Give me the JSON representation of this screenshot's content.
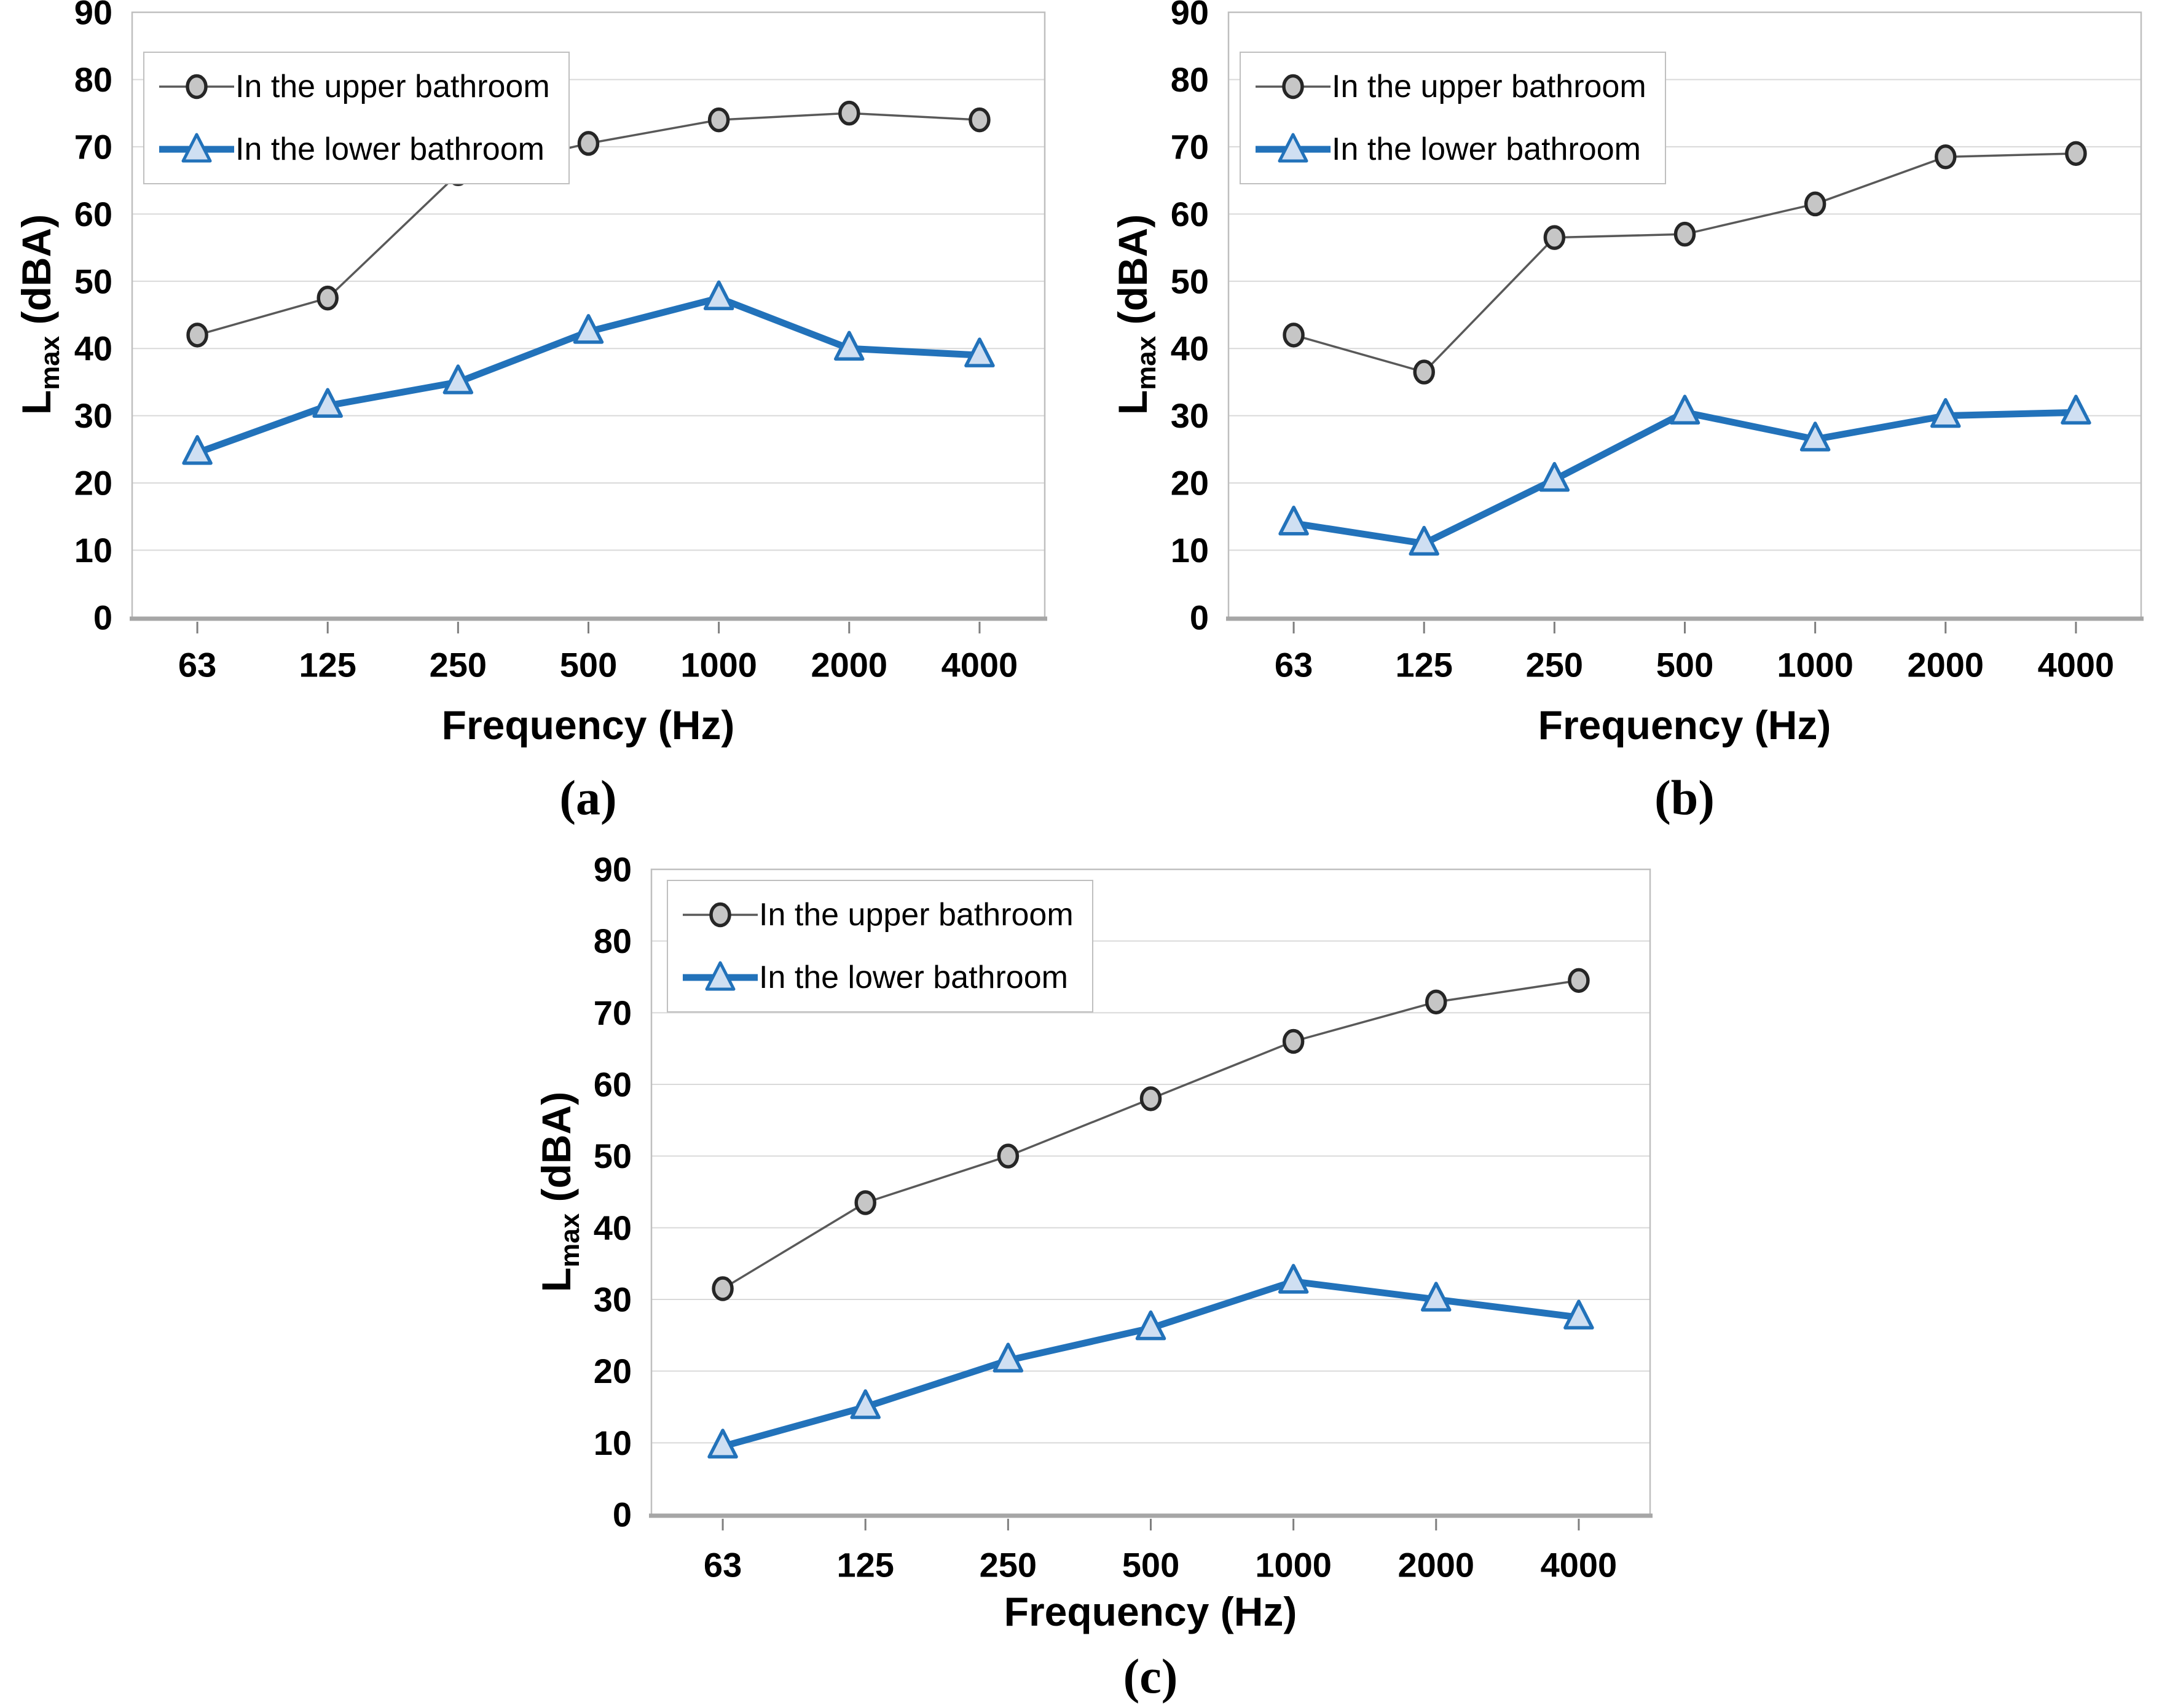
{
  "figure_background": "#ffffff",
  "colors": {
    "upper_line": "#595959",
    "upper_marker_fill": "#c6c6c6",
    "upper_marker_stroke": "#262626",
    "lower_line": "#2272ba",
    "lower_marker_fill": "#cfdff2",
    "lower_marker_stroke": "#2272ba",
    "gridline": "#d9d9d9",
    "plot_border": "#bfbfbf",
    "axis_line": "#a6a6a6",
    "tick_mark": "#7f7f7f",
    "text": "#000000"
  },
  "axis": {
    "x_title": "Frequency (Hz)",
    "y_title_main": "L",
    "y_title_sub": "max",
    "y_title_unit": " (dBA)"
  },
  "chart_data": [
    {
      "id": "a",
      "type": "line",
      "caption": "(a)",
      "categories": [
        "63",
        "125",
        "250",
        "500",
        "1000",
        "2000",
        "4000"
      ],
      "xlabel": "Frequency (Hz)",
      "ylabel": "Lmax (dBA)",
      "ylim": [
        0,
        90
      ],
      "ytick_step": 10,
      "grid": true,
      "legend_position": "top-left",
      "series": [
        {
          "name": "In the upper bathroom",
          "marker": "circle",
          "values": [
            42,
            47.5,
            66,
            70.5,
            74,
            75,
            74
          ]
        },
        {
          "name": "In the lower bathroom",
          "marker": "triangle",
          "values": [
            24.5,
            31.5,
            35,
            42.5,
            47.5,
            40,
            39
          ]
        }
      ]
    },
    {
      "id": "b",
      "type": "line",
      "caption": "(b)",
      "categories": [
        "63",
        "125",
        "250",
        "500",
        "1000",
        "2000",
        "4000"
      ],
      "xlabel": "Frequency (Hz)",
      "ylabel": "Lmax (dBA)",
      "ylim": [
        0,
        90
      ],
      "ytick_step": 10,
      "grid": true,
      "legend_position": "top-left",
      "series": [
        {
          "name": "In the upper bathroom",
          "marker": "circle",
          "values": [
            42,
            36.5,
            56.5,
            57,
            61.5,
            68.5,
            69
          ]
        },
        {
          "name": "In the lower bathroom",
          "marker": "triangle",
          "values": [
            14,
            11,
            20.5,
            30.5,
            26.5,
            30,
            30.5
          ]
        }
      ]
    },
    {
      "id": "c",
      "type": "line",
      "caption": "(c)",
      "categories": [
        "63",
        "125",
        "250",
        "500",
        "1000",
        "2000",
        "4000"
      ],
      "xlabel": "Frequency (Hz)",
      "ylabel": "Lmax (dBA)",
      "ylim": [
        0,
        90
      ],
      "ytick_step": 10,
      "grid": true,
      "legend_position": "top-left",
      "series": [
        {
          "name": "In the upper bathroom",
          "marker": "circle",
          "values": [
            31.5,
            43.5,
            50,
            58,
            66,
            71.5,
            74.5
          ]
        },
        {
          "name": "In the lower bathroom",
          "marker": "triangle",
          "values": [
            9.5,
            15,
            21.5,
            26,
            32.5,
            30,
            27.5
          ]
        }
      ]
    }
  ]
}
